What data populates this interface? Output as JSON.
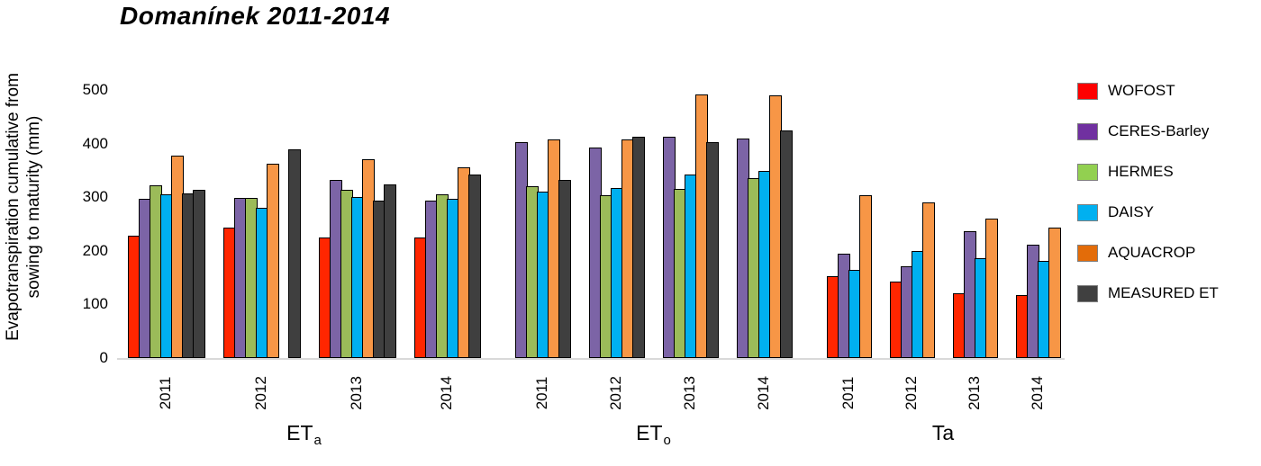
{
  "chart_data": {
    "type": "bar",
    "title": "Domanínek 2011-2014",
    "ylabel_lines": [
      "Evapotranspiration cumulative from",
      "sowing to maturity (mm)"
    ],
    "ylabel": "Evapotranspiration cumulative from sowing to maturity (mm)",
    "ylim": [
      0,
      500
    ],
    "yticks": [
      0,
      100,
      200,
      300,
      400,
      500
    ],
    "grid": "off",
    "legend_position": "right",
    "series": [
      {
        "name": "WOFOST",
        "color": "#ff2600",
        "legend_color": "#fe0000"
      },
      {
        "name": "CERES-Barley",
        "color": "#7c64a6",
        "legend_color": "#7030a0"
      },
      {
        "name": "HERMES",
        "color": "#9bbb59",
        "legend_color": "#92d050"
      },
      {
        "name": "DAISY",
        "color": "#00b0f0",
        "legend_color": "#00b0f0"
      },
      {
        "name": "AQUACROP",
        "color": "#f79646",
        "legend_color": "#e36c09"
      },
      {
        "name": "MEASURED ET",
        "color": "#3f3f3f",
        "legend_color": "#404040"
      }
    ],
    "sections": [
      {
        "label_main": "ET",
        "label_sub": "a",
        "label_id": "eta",
        "groups": [
          {
            "year": "2011",
            "bars": [
              {
                "series": "WOFOST",
                "value": 228
              },
              {
                "series": "CERES-Barley",
                "value": 297
              },
              {
                "series": "HERMES",
                "value": 322
              },
              {
                "series": "DAISY",
                "value": 306
              },
              {
                "series": "AQUACROP",
                "value": 378
              },
              {
                "series": "MEASURED ET",
                "value": 307
              },
              {
                "series": "MEASURED ET",
                "value": 314
              }
            ]
          },
          {
            "year": "2012",
            "bars": [
              {
                "series": "WOFOST",
                "value": 243
              },
              {
                "series": "CERES-Barley",
                "value": 298
              },
              {
                "series": "HERMES",
                "value": 298
              },
              {
                "series": "DAISY",
                "value": 281
              },
              {
                "series": "AQUACROP",
                "value": 362
              },
              {
                "series": null,
                "value": null
              },
              {
                "series": "MEASURED ET",
                "value": 390
              }
            ]
          },
          {
            "year": "2013",
            "bars": [
              {
                "series": "WOFOST",
                "value": 224
              },
              {
                "series": "CERES-Barley",
                "value": 333
              },
              {
                "series": "HERMES",
                "value": 314
              },
              {
                "series": "DAISY",
                "value": 300
              },
              {
                "series": "AQUACROP",
                "value": 371
              },
              {
                "series": "MEASURED ET",
                "value": 294
              },
              {
                "series": "MEASURED ET",
                "value": 324
              }
            ]
          },
          {
            "year": "2014",
            "bars": [
              {
                "series": "WOFOST",
                "value": 224
              },
              {
                "series": "CERES-Barley",
                "value": 293
              },
              {
                "series": "HERMES",
                "value": 306
              },
              {
                "series": "DAISY",
                "value": 297
              },
              {
                "series": "AQUACROP",
                "value": 356
              },
              {
                "series": "MEASURED ET",
                "value": 342
              }
            ]
          }
        ]
      },
      {
        "label_main": "ET",
        "label_sub": "o",
        "label_id": "eto",
        "groups": [
          {
            "year": "2011",
            "bars": [
              {
                "series": "CERES-Barley",
                "value": 403
              },
              {
                "series": "HERMES",
                "value": 320
              },
              {
                "series": "DAISY",
                "value": 311
              },
              {
                "series": "AQUACROP",
                "value": 407
              },
              {
                "series": "MEASURED ET",
                "value": 333
              }
            ]
          },
          {
            "year": "2012",
            "bars": [
              {
                "series": "CERES-Barley",
                "value": 393
              },
              {
                "series": "HERMES",
                "value": 303
              },
              {
                "series": "DAISY",
                "value": 317
              },
              {
                "series": "AQUACROP",
                "value": 408
              },
              {
                "series": "MEASURED ET",
                "value": 413
              }
            ]
          },
          {
            "year": "2013",
            "bars": [
              {
                "series": "CERES-Barley",
                "value": 413
              },
              {
                "series": "HERMES",
                "value": 315
              },
              {
                "series": "DAISY",
                "value": 343
              },
              {
                "series": "AQUACROP",
                "value": 492
              },
              {
                "series": "MEASURED ET",
                "value": 402
              }
            ]
          },
          {
            "year": "2014",
            "bars": [
              {
                "series": "CERES-Barley",
                "value": 410
              },
              {
                "series": "HERMES",
                "value": 335
              },
              {
                "series": "DAISY",
                "value": 349
              },
              {
                "series": "AQUACROP",
                "value": 490
              },
              {
                "series": "MEASURED ET",
                "value": 424
              }
            ]
          }
        ]
      },
      {
        "label_main": "Ta",
        "label_sub": "",
        "label_id": "ta",
        "groups": [
          {
            "year": "2011",
            "bars": [
              {
                "series": "WOFOST",
                "value": 152
              },
              {
                "series": "CERES-Barley",
                "value": 195
              },
              {
                "series": "DAISY",
                "value": 165
              },
              {
                "series": "AQUACROP",
                "value": 303
              }
            ]
          },
          {
            "year": "2012",
            "bars": [
              {
                "series": "WOFOST",
                "value": 142
              },
              {
                "series": "CERES-Barley",
                "value": 171
              },
              {
                "series": "DAISY",
                "value": 199
              },
              {
                "series": "AQUACROP",
                "value": 291
              }
            ]
          },
          {
            "year": "2013",
            "bars": [
              {
                "series": "WOFOST",
                "value": 120
              },
              {
                "series": "CERES-Barley",
                "value": 236
              },
              {
                "series": "DAISY",
                "value": 187
              },
              {
                "series": "AQUACROP",
                "value": 260
              }
            ]
          },
          {
            "year": "2014",
            "bars": [
              {
                "series": "WOFOST",
                "value": 117
              },
              {
                "series": "CERES-Barley",
                "value": 211
              },
              {
                "series": "DAISY",
                "value": 181
              },
              {
                "series": "AQUACROP",
                "value": 244
              }
            ]
          }
        ]
      }
    ]
  }
}
